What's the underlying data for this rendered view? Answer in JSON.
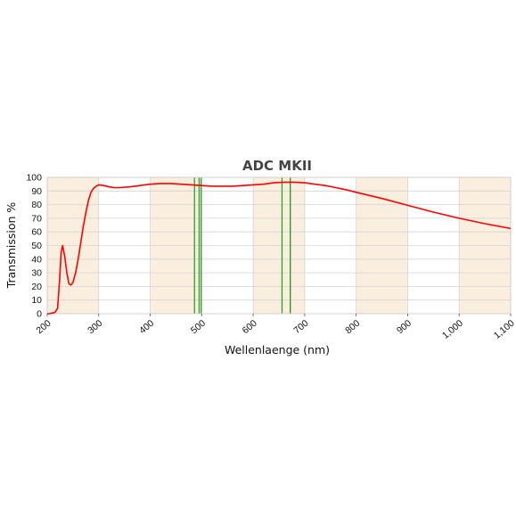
{
  "chart_data": {
    "type": "line",
    "title": "ADC MKII",
    "xlabel": "Wellenlaenge (nm)",
    "ylabel": "Transmission %",
    "xlim": [
      200,
      1100
    ],
    "ylim": [
      0,
      100
    ],
    "x_ticks": [
      200,
      300,
      400,
      500,
      600,
      700,
      800,
      900,
      1000,
      1100
    ],
    "x_tick_labels": [
      "200",
      "300",
      "400",
      "500",
      "600",
      "700",
      "800",
      "900",
      "1,000",
      "1,100"
    ],
    "y_ticks": [
      0,
      10,
      20,
      30,
      40,
      50,
      60,
      70,
      80,
      90,
      100
    ],
    "y_tick_labels": [
      "0",
      "10",
      "20",
      "30",
      "40",
      "50",
      "60",
      "70",
      "80",
      "90",
      "100"
    ],
    "grid": true,
    "shaded_bands": [
      [
        200,
        300
      ],
      [
        400,
        500
      ],
      [
        600,
        700
      ],
      [
        800,
        900
      ],
      [
        1000,
        1100
      ]
    ],
    "band_color": "#faeede",
    "vertical_lines": [
      {
        "x": 486,
        "color": "#2e9e2e"
      },
      {
        "x": 495,
        "color": "#2e9e2e"
      },
      {
        "x": 499,
        "color": "#2e9e2e"
      },
      {
        "x": 656,
        "color": "#2e9e2e"
      },
      {
        "x": 672,
        "color": "#1f8f1f"
      }
    ],
    "series": [
      {
        "color": "#ff0000",
        "x": [
          200,
          205,
          210,
          215,
          220,
          224,
          227,
          230,
          234,
          238,
          242,
          246,
          250,
          255,
          260,
          265,
          270,
          275,
          280,
          285,
          290,
          295,
          300,
          310,
          320,
          330,
          340,
          360,
          380,
          400,
          420,
          440,
          460,
          480,
          500,
          520,
          540,
          560,
          580,
          600,
          620,
          640,
          660,
          680,
          700,
          720,
          740,
          760,
          780,
          800,
          850,
          900,
          950,
          1000,
          1050,
          1100
        ],
        "y": [
          0,
          0,
          0.5,
          1,
          4,
          25,
          45,
          50,
          42,
          30,
          22,
          21,
          23,
          30,
          40,
          52,
          64,
          74,
          83,
          89,
          92,
          93.5,
          94.5,
          94,
          93,
          92.5,
          92.5,
          93,
          94,
          95,
          95.5,
          95.5,
          95,
          94.5,
          94,
          93.5,
          93.5,
          93.5,
          94,
          94.5,
          95,
          96,
          96.5,
          96.5,
          96,
          95,
          94,
          92.5,
          91,
          89,
          84.5,
          79.5,
          74.5,
          70,
          66,
          62.5
        ]
      }
    ]
  }
}
